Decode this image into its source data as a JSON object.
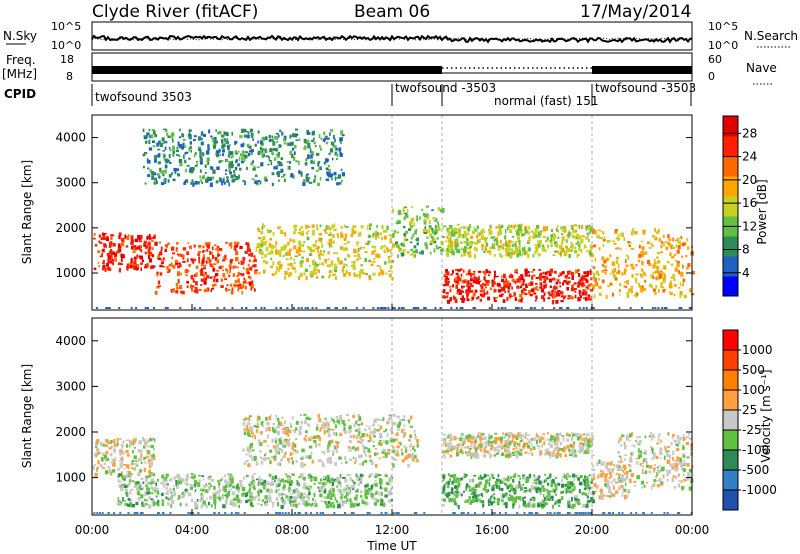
{
  "header": {
    "station": "Clyde River (fitACF)",
    "beam": "Beam 06",
    "date": "17/May/2014"
  },
  "nsky_panel": {
    "label": "N.Sky",
    "ticks_left": [
      "10^5",
      "10^0"
    ],
    "ticks_right": [
      "10^5",
      "10^0"
    ],
    "right_label": "N.Search"
  },
  "freq_panel": {
    "label_line1": "Freq.",
    "label_line2": "[MHz]",
    "ticks_left": [
      "18",
      "8"
    ],
    "ticks_right": [
      "60",
      "0"
    ],
    "right_label": "Nave"
  },
  "cpid": {
    "label": "CPID",
    "segments": [
      {
        "name": "twofsound 3503",
        "start": 0.0,
        "end": 12.0
      },
      {
        "name": "twofsound -3503",
        "start": 12.0,
        "end": 14.0
      },
      {
        "name": "normal (fast) 151",
        "start": 14.0,
        "end": 20.0
      },
      {
        "name": "twofsound -3503",
        "start": 20.0,
        "end": 24.0
      }
    ]
  },
  "x_axis": {
    "label": "Time UT",
    "ticks": [
      "00:00",
      "04:00",
      "08:00",
      "12:00",
      "16:00",
      "20:00",
      "00:00"
    ]
  },
  "power_panel": {
    "ylabel": "Slant Range [km]",
    "yticks": [
      "1000",
      "2000",
      "3000",
      "4000"
    ],
    "colorbar_label": "Power [dB]",
    "colorbar_ticks": [
      "28",
      "24",
      "20",
      "16",
      "12",
      "8",
      "4"
    ],
    "colors": [
      "#0000ff",
      "#2060c0",
      "#2e8b57",
      "#60c040",
      "#c8d020",
      "#ffa500",
      "#ff6a00",
      "#ff2000",
      "#e00000"
    ]
  },
  "velocity_panel": {
    "ylabel": "Slant Range [km]",
    "yticks": [
      "1000",
      "2000",
      "3000",
      "4000"
    ],
    "colorbar_label": "Velocity [m s⁻¹]",
    "colorbar_ticks": [
      "1000",
      "500",
      "100",
      "25",
      "-25",
      "-100",
      "-500",
      "-1000"
    ],
    "colors": [
      "#2050b0",
      "#3080c8",
      "#2e8b57",
      "#60c040",
      "#c8c8c8",
      "#ffa040",
      "#ff8000",
      "#ff4000",
      "#ff0000"
    ]
  },
  "chart_data": [
    {
      "type": "heatmap",
      "title": "Clyde River (fitACF) Beam 06 17/May/2014",
      "quantity": "Power [dB]",
      "xlabel": "Time UT",
      "ylabel": "Slant Range [km]",
      "xlim_hours": [
        0,
        24
      ],
      "ylim_km": [
        180,
        4500
      ],
      "clim": [
        0,
        30
      ],
      "features": [
        {
          "t": [
            0.0,
            2.5
          ],
          "r": [
            1100,
            1900
          ],
          "level": 26
        },
        {
          "t": [
            2.5,
            6.5
          ],
          "r": [
            600,
            1700
          ],
          "level": 24
        },
        {
          "t": [
            6.5,
            12.0
          ],
          "r": [
            900,
            2100
          ],
          "level": 16
        },
        {
          "t": [
            12.0,
            14.0
          ],
          "r": [
            1400,
            2500
          ],
          "level": 12
        },
        {
          "t": [
            14.0,
            20.0
          ],
          "r": [
            400,
            1100
          ],
          "level": 26
        },
        {
          "t": [
            14.0,
            20.0
          ],
          "r": [
            1400,
            2100
          ],
          "level": 14
        },
        {
          "t": [
            20.0,
            24.0
          ],
          "r": [
            500,
            2000
          ],
          "level": 18
        },
        {
          "t": [
            2.0,
            10.0
          ],
          "r": [
            3000,
            4200
          ],
          "level": 8
        }
      ]
    },
    {
      "type": "heatmap",
      "quantity": "Velocity [m s-1]",
      "xlabel": "Time UT",
      "ylabel": "Slant Range [km]",
      "xlim_hours": [
        0,
        24
      ],
      "ylim_km": [
        180,
        4500
      ],
      "clim": [
        -1000,
        1000
      ],
      "features": [
        {
          "t": [
            0.0,
            2.5
          ],
          "r": [
            1100,
            1900
          ],
          "level": 0
        },
        {
          "t": [
            1.0,
            12.0
          ],
          "r": [
            400,
            1100
          ],
          "level": -150
        },
        {
          "t": [
            6.0,
            13.0
          ],
          "r": [
            1300,
            2400
          ],
          "level": 0
        },
        {
          "t": [
            14.0,
            20.0
          ],
          "r": [
            400,
            1100
          ],
          "level": -300
        },
        {
          "t": [
            14.0,
            20.0
          ],
          "r": [
            1500,
            2000
          ],
          "level": 0
        },
        {
          "t": [
            20.0,
            21.5
          ],
          "r": [
            600,
            1400
          ],
          "level": 80
        },
        {
          "t": [
            21.0,
            24.0
          ],
          "r": [
            800,
            2000
          ],
          "level": 0
        }
      ]
    }
  ]
}
